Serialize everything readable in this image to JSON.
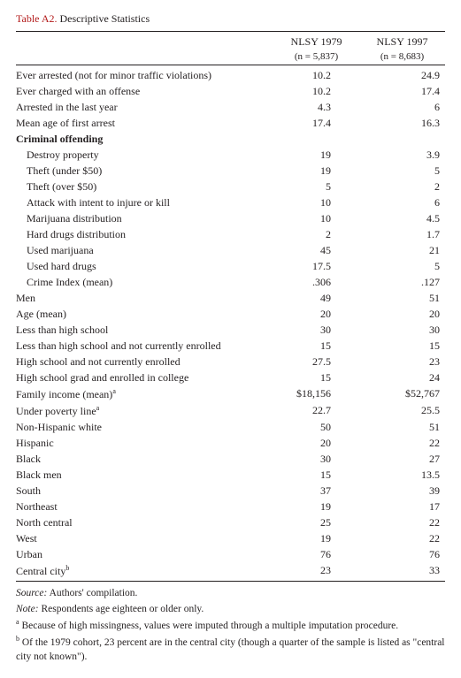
{
  "title": {
    "label": "Table A2.",
    "text": "Descriptive Statistics"
  },
  "columns": [
    {
      "head": "NLSY 1979",
      "sub": "(n = 5,837)"
    },
    {
      "head": "NLSY 1997",
      "sub": "(n = 8,683)"
    }
  ],
  "col_widths": [
    "60%",
    "20%",
    "20%"
  ],
  "sections": [
    {
      "rows": [
        {
          "label": "Ever arrested (not for minor traffic violations)",
          "v": [
            "10.2",
            "24.9"
          ]
        },
        {
          "label": "Ever charged with an offense",
          "v": [
            "10.2",
            "17.4"
          ]
        },
        {
          "label": "Arrested in the last year",
          "v": [
            "4.3",
            "6"
          ]
        },
        {
          "label": "Mean age of first arrest",
          "v": [
            "17.4",
            "16.3"
          ]
        }
      ]
    },
    {
      "heading": "Criminal offending",
      "rows": [
        {
          "label": "Destroy property",
          "indent": 1,
          "v": [
            "19",
            "3.9"
          ]
        },
        {
          "label": "Theft (under $50)",
          "indent": 1,
          "v": [
            "19",
            "5"
          ]
        },
        {
          "label": "Theft (over $50)",
          "indent": 1,
          "v": [
            "5",
            "2"
          ]
        },
        {
          "label": "Attack with intent to injure or kill",
          "indent": 1,
          "v": [
            "10",
            "6"
          ]
        },
        {
          "label": "Marijuana distribution",
          "indent": 1,
          "v": [
            "10",
            "4.5"
          ]
        },
        {
          "label": "Hard drugs distribution",
          "indent": 1,
          "v": [
            "2",
            "1.7"
          ]
        },
        {
          "label": "Used marijuana",
          "indent": 1,
          "v": [
            "45",
            "21"
          ]
        },
        {
          "label": "Used hard drugs",
          "indent": 1,
          "v": [
            "17.5",
            "5"
          ]
        },
        {
          "label": "Crime Index (mean)",
          "indent": 1,
          "v": [
            ".306",
            ".127"
          ]
        }
      ]
    },
    {
      "rows": [
        {
          "label": "Men",
          "v": [
            "49",
            "51"
          ]
        },
        {
          "label": "Age (mean)",
          "v": [
            "20",
            "20"
          ]
        },
        {
          "label": "Less than high school",
          "v": [
            "30",
            "30"
          ]
        },
        {
          "label": "Less than high school and not currently enrolled",
          "v": [
            "15",
            "15"
          ]
        },
        {
          "label": "High school and not currently enrolled",
          "v": [
            "27.5",
            "23"
          ]
        },
        {
          "label": "High school grad and enrolled in college",
          "v": [
            "15",
            "24"
          ]
        },
        {
          "label": "Family income (mean)",
          "sup": "a",
          "v": [
            "$18,156",
            "$52,767"
          ]
        },
        {
          "label": "Under poverty line",
          "sup": "a",
          "v": [
            "22.7",
            "25.5"
          ]
        },
        {
          "label": "Non-Hispanic white",
          "v": [
            "50",
            "51"
          ]
        },
        {
          "label": "Hispanic",
          "v": [
            "20",
            "22"
          ]
        },
        {
          "label": "Black",
          "v": [
            "30",
            "27"
          ]
        },
        {
          "label": "Black men",
          "v": [
            "15",
            "13.5"
          ]
        },
        {
          "label": "South",
          "v": [
            "37",
            "39"
          ]
        },
        {
          "label": "Northeast",
          "v": [
            "19",
            "17"
          ]
        },
        {
          "label": "North central",
          "v": [
            "25",
            "22"
          ]
        },
        {
          "label": "West",
          "v": [
            "19",
            "22"
          ]
        },
        {
          "label": "Urban",
          "v": [
            "76",
            "76"
          ]
        },
        {
          "label": "Central city",
          "sup": "b",
          "v": [
            "23",
            "33"
          ]
        }
      ]
    }
  ],
  "footnotes": {
    "source_label": "Source:",
    "source_text": "Authors' compilation.",
    "note_label": "Note:",
    "note_text": "Respondents age eighteen or older only.",
    "a_sup": "a",
    "a_text": "Because of high missingness, values were imputed through a multiple imputation procedure.",
    "b_sup": "b",
    "b_text": "Of the 1979 cohort, 23 percent are in the central city (though a quarter of the sample is listed as \"central city not known\")."
  },
  "colors": {
    "accent": "#b31b1b",
    "text": "#231f20",
    "rule": "#231f20",
    "background": "#ffffff"
  }
}
